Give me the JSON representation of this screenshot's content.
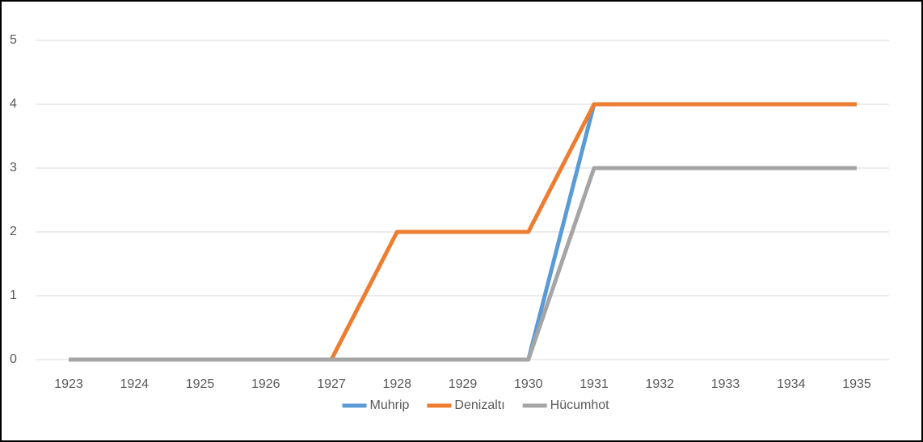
{
  "chart_data": {
    "type": "line",
    "categories": [
      "1923",
      "1924",
      "1925",
      "1926",
      "1927",
      "1928",
      "1929",
      "1930",
      "1931",
      "1932",
      "1933",
      "1934",
      "1935"
    ],
    "series": [
      {
        "name": "Muhrip",
        "color": "#5b9bd5",
        "values": [
          0,
          0,
          0,
          0,
          0,
          0,
          0,
          0,
          4,
          4,
          4,
          4,
          4
        ]
      },
      {
        "name": "Denizaltı",
        "color": "#ed7d31",
        "values": [
          0,
          0,
          0,
          0,
          0,
          2,
          2,
          2,
          4,
          4,
          4,
          4,
          4
        ]
      },
      {
        "name": "Hücumhot",
        "color": "#a5a5a5",
        "values": [
          0,
          0,
          0,
          0,
          0,
          0,
          0,
          0,
          3,
          3,
          3,
          3,
          3
        ]
      }
    ],
    "ylim": [
      0,
      5
    ],
    "yticks": [
      0,
      1,
      2,
      3,
      4,
      5
    ],
    "grid": true,
    "legend": "bottom"
  }
}
